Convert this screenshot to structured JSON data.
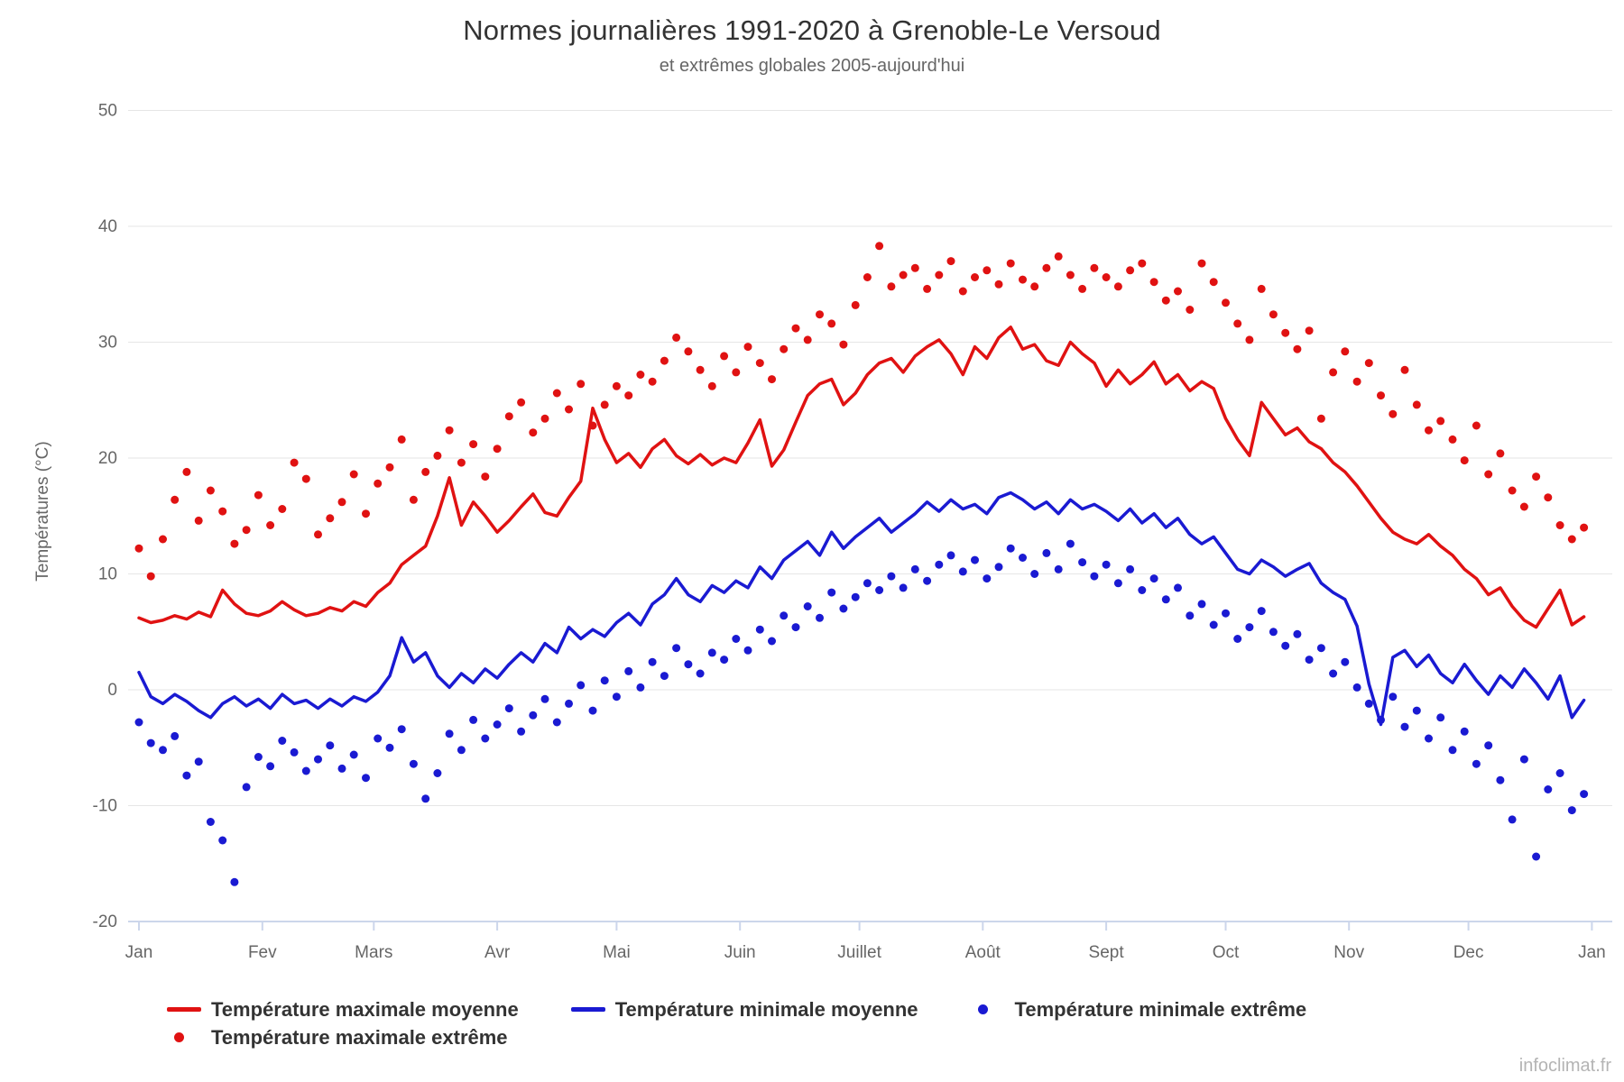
{
  "title": "Normes journalières 1991-2020 à Grenoble-Le Versoud",
  "subtitle": "et extrêmes globales 2005-aujourd'hui",
  "watermark": "infoclimat.fr",
  "colors": {
    "red": "#e01212",
    "blue": "#1a1ad2",
    "grid": "#e6e6e6",
    "axis_line": "#ccd6eb",
    "tick_label": "#666666",
    "title_text": "#333333",
    "legend_text": "#333333",
    "watermark_text": "#b4b4b4"
  },
  "chart_data": {
    "type": "line",
    "title": "Normes journalières 1991-2020 à Grenoble-Le Versoud",
    "subtitle": "et extrêmes globales 2005-aujourd'hui",
    "xlabel": "",
    "ylabel": "Températures (°C)",
    "ylim": [
      -20,
      50
    ],
    "yticks": [
      50,
      40,
      30,
      20,
      10,
      0,
      -10,
      -20
    ],
    "grid": "horizontal",
    "legend_position": "bottom",
    "xticks": {
      "days": [
        1,
        32,
        60,
        91,
        121,
        152,
        182,
        213,
        244,
        274,
        305,
        335,
        366
      ],
      "labels": [
        "Jan",
        "Fev",
        "Mars",
        "Avr",
        "Mai",
        "Juin",
        "Juillet",
        "Août",
        "Sept",
        "Oct",
        "Nov",
        "Dec",
        "Jan"
      ]
    },
    "sampling": {
      "day_start": 1,
      "day_step": 3,
      "days_total": 365
    },
    "series": [
      {
        "id": "tmax_moy",
        "name": "Température maximale moyenne",
        "mode": "line",
        "color_key": "red",
        "values": [
          6.2,
          5.8,
          6.0,
          6.4,
          6.1,
          6.7,
          6.3,
          8.6,
          7.4,
          6.6,
          6.4,
          6.8,
          7.6,
          6.9,
          6.4,
          6.6,
          7.1,
          6.8,
          7.6,
          7.2,
          8.4,
          9.2,
          10.8,
          11.6,
          12.4,
          15.0,
          18.3,
          14.2,
          16.2,
          15.0,
          13.6,
          14.6,
          15.8,
          16.9,
          15.3,
          15.0,
          16.6,
          18.0,
          24.3,
          21.6,
          19.6,
          20.4,
          19.2,
          20.8,
          21.6,
          20.2,
          19.5,
          20.3,
          19.4,
          20.0,
          19.6,
          21.3,
          23.3,
          19.3,
          20.7,
          23.1,
          25.4,
          26.4,
          26.8,
          24.6,
          25.6,
          27.2,
          28.2,
          28.6,
          27.4,
          28.8,
          29.6,
          30.2,
          29.0,
          27.2,
          29.6,
          28.6,
          30.4,
          31.3,
          29.4,
          29.8,
          28.4,
          28.0,
          30.0,
          29.0,
          28.2,
          26.2,
          27.6,
          26.4,
          27.2,
          28.3,
          26.4,
          27.2,
          25.8,
          26.6,
          26.0,
          23.4,
          21.6,
          20.2,
          24.8,
          23.4,
          22.0,
          22.6,
          21.4,
          20.8,
          19.6,
          18.8,
          17.6,
          16.2,
          14.8,
          13.6,
          13.0,
          12.6,
          13.4,
          12.4,
          11.6,
          10.4,
          9.6,
          8.2,
          8.8,
          7.2,
          6.0,
          5.4,
          7.0,
          8.6,
          5.6,
          6.3
        ]
      },
      {
        "id": "tmax_ext",
        "name": "Température maximale extrême",
        "mode": "scatter",
        "color_key": "red",
        "values": [
          12.2,
          9.8,
          13.0,
          16.4,
          18.8,
          14.6,
          17.2,
          15.4,
          12.6,
          13.8,
          16.8,
          14.2,
          15.6,
          19.6,
          18.2,
          13.4,
          14.8,
          16.2,
          18.6,
          15.2,
          17.8,
          19.2,
          21.6,
          16.4,
          18.8,
          20.2,
          22.4,
          19.6,
          21.2,
          18.4,
          20.8,
          23.6,
          24.8,
          22.2,
          23.4,
          25.6,
          24.2,
          26.4,
          22.8,
          24.6,
          26.2,
          25.4,
          27.2,
          26.6,
          28.4,
          30.4,
          29.2,
          27.6,
          26.2,
          28.8,
          27.4,
          29.6,
          28.2,
          26.8,
          29.4,
          31.2,
          30.2,
          32.4,
          31.6,
          29.8,
          33.2,
          35.6,
          38.3,
          34.8,
          35.8,
          36.4,
          34.6,
          35.8,
          37.0,
          34.4,
          35.6,
          36.2,
          35.0,
          36.8,
          35.4,
          34.8,
          36.4,
          37.4,
          35.8,
          34.6,
          36.4,
          35.6,
          34.8,
          36.2,
          36.8,
          35.2,
          33.6,
          34.4,
          32.8,
          36.8,
          35.2,
          33.4,
          31.6,
          30.2,
          34.6,
          32.4,
          30.8,
          29.4,
          31.0,
          23.4,
          27.4,
          29.2,
          26.6,
          28.2,
          25.4,
          23.8,
          27.6,
          24.6,
          22.4,
          23.2,
          21.6,
          19.8,
          22.8,
          18.6,
          20.4,
          17.2,
          15.8,
          18.4,
          16.6,
          14.2,
          13.0,
          14.0
        ]
      },
      {
        "id": "tmin_moy",
        "name": "Température minimale moyenne",
        "mode": "line",
        "color_key": "blue",
        "values": [
          1.5,
          -0.6,
          -1.2,
          -0.4,
          -1.0,
          -1.8,
          -2.4,
          -1.2,
          -0.6,
          -1.4,
          -0.8,
          -1.6,
          -0.4,
          -1.2,
          -0.9,
          -1.6,
          -0.8,
          -1.4,
          -0.6,
          -1.0,
          -0.2,
          1.2,
          4.5,
          2.4,
          3.2,
          1.2,
          0.2,
          1.4,
          0.6,
          1.8,
          1.0,
          2.2,
          3.2,
          2.4,
          4.0,
          3.2,
          5.4,
          4.4,
          5.2,
          4.6,
          5.8,
          6.6,
          5.6,
          7.4,
          8.2,
          9.6,
          8.2,
          7.6,
          9.0,
          8.4,
          9.4,
          8.8,
          10.6,
          9.6,
          11.2,
          12.0,
          12.8,
          11.6,
          13.6,
          12.2,
          13.2,
          14.0,
          14.8,
          13.6,
          14.4,
          15.2,
          16.2,
          15.4,
          16.4,
          15.6,
          16.0,
          15.2,
          16.6,
          17.0,
          16.4,
          15.6,
          16.2,
          15.2,
          16.4,
          15.6,
          16.0,
          15.4,
          14.6,
          15.6,
          14.4,
          15.2,
          14.0,
          14.8,
          13.4,
          12.6,
          13.2,
          11.8,
          10.4,
          10.0,
          11.2,
          10.6,
          9.8,
          10.4,
          10.9,
          9.2,
          8.4,
          7.8,
          5.5,
          0.5,
          -3.0,
          2.8,
          3.4,
          2.0,
          3.0,
          1.4,
          0.6,
          2.2,
          0.8,
          -0.4,
          1.2,
          0.2,
          1.8,
          0.6,
          -0.8,
          1.2,
          -2.4,
          -0.9
        ]
      },
      {
        "id": "tmin_ext",
        "name": "Température minimale extrême",
        "mode": "scatter",
        "color_key": "blue",
        "values": [
          -2.8,
          -4.6,
          -5.2,
          -4.0,
          -7.4,
          -6.2,
          -11.4,
          -13.0,
          -16.6,
          -8.4,
          -5.8,
          -6.6,
          -4.4,
          -5.4,
          -7.0,
          -6.0,
          -4.8,
          -6.8,
          -5.6,
          -7.6,
          -4.2,
          -5.0,
          -3.4,
          -6.4,
          -9.4,
          -7.2,
          -3.8,
          -5.2,
          -2.6,
          -4.2,
          -3.0,
          -1.6,
          -3.6,
          -2.2,
          -0.8,
          -2.8,
          -1.2,
          0.4,
          -1.8,
          0.8,
          -0.6,
          1.6,
          0.2,
          2.4,
          1.2,
          3.6,
          2.2,
          1.4,
          3.2,
          2.6,
          4.4,
          3.4,
          5.2,
          4.2,
          6.4,
          5.4,
          7.2,
          6.2,
          8.4,
          7.0,
          8.0,
          9.2,
          8.6,
          9.8,
          8.8,
          10.4,
          9.4,
          10.8,
          11.6,
          10.2,
          11.2,
          9.6,
          10.6,
          12.2,
          11.4,
          10.0,
          11.8,
          10.4,
          12.6,
          11.0,
          9.8,
          10.8,
          9.2,
          10.4,
          8.6,
          9.6,
          7.8,
          8.8,
          6.4,
          7.4,
          5.6,
          6.6,
          4.4,
          5.4,
          6.8,
          5.0,
          3.8,
          4.8,
          2.6,
          3.6,
          1.4,
          2.4,
          0.2,
          -1.2,
          -2.6,
          -0.6,
          -3.2,
          -1.8,
          -4.2,
          -2.4,
          -5.2,
          -3.6,
          -6.4,
          -4.8,
          -7.8,
          -11.2,
          -6.0,
          -14.4,
          -8.6,
          -7.2,
          -10.4,
          -9.0
        ]
      }
    ],
    "legend_rows": [
      [
        "tmax_moy",
        "tmin_moy",
        "tmin_ext"
      ],
      [
        "tmax_ext"
      ]
    ]
  }
}
